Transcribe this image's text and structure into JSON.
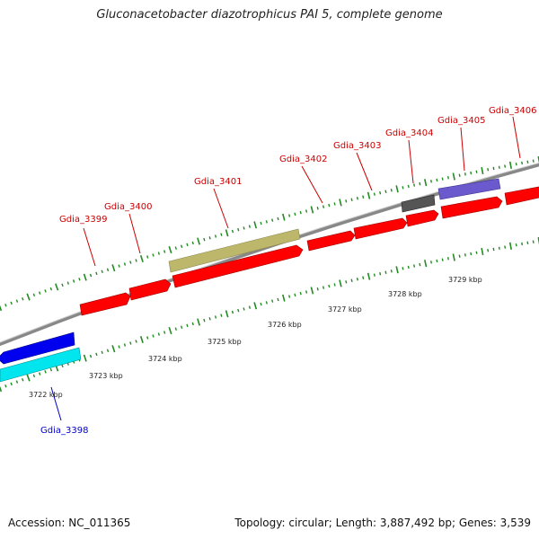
{
  "title": "Gluconacetobacter diazotrophicus PAI 5, complete genome",
  "footer": {
    "accession": "Accession: NC_011365",
    "topology": "Topology: circular; Length: 3,887,492 bp; Genes: 3,539"
  },
  "colors": {
    "backbone": "#888888",
    "ticks": "#228B22",
    "cds_red": "#ff0000",
    "cds_blue": "#0000ee",
    "cds_cyan": "#00e5ee",
    "cds_olive": "#bdb76b",
    "cds_grey": "#555555",
    "cds_purple": "#6a5acd",
    "label_forward": "#cc0000",
    "label_reverse": "#0000cc"
  },
  "scale_labels": [
    "3722 kbp",
    "3723 kbp",
    "3724 kbp",
    "3725 kbp",
    "3726 kbp",
    "3727 kbp",
    "3728 kbp",
    "3729 kbp"
  ],
  "gene_labels": [
    "Gdia_3398",
    "Gdia_3399",
    "Gdia_3400",
    "Gdia_3401",
    "Gdia_3402",
    "Gdia_3403",
    "Gdia_3404",
    "Gdia_3405",
    "Gdia_3406"
  ]
}
